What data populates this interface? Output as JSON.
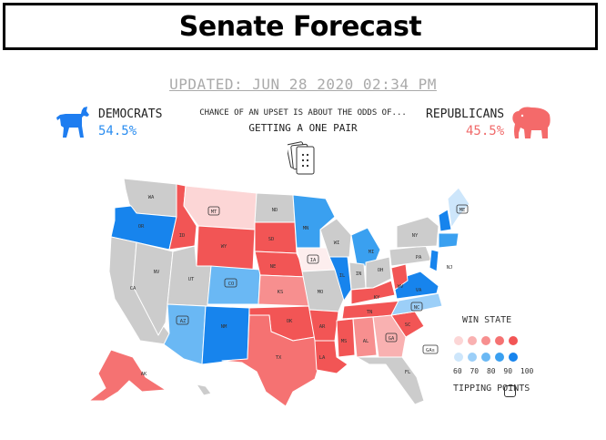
{
  "header": {
    "title": "Senate Forecast"
  },
  "updated": "UPDATED: JUN 28 2020 02:34 PM",
  "democrats": {
    "label": "DEMOCRATS",
    "pct": "54.5%",
    "color": "#1e7df0"
  },
  "republicans": {
    "label": "REPUBLICANS",
    "pct": "45.5%",
    "color": "#f46a6a"
  },
  "odds": {
    "line1": "CHANCE OF AN UPSET IS ABOUT THE ODDS OF...",
    "line2": "GETTING A ONE PAIR"
  },
  "map": {
    "states": [
      {
        "abbr": "WA",
        "boxed": false
      },
      {
        "abbr": "OR",
        "boxed": false
      },
      {
        "abbr": "CA",
        "boxed": false
      },
      {
        "abbr": "NV",
        "boxed": false
      },
      {
        "abbr": "ID",
        "boxed": false
      },
      {
        "abbr": "MT",
        "boxed": true
      },
      {
        "abbr": "WY",
        "boxed": false
      },
      {
        "abbr": "UT",
        "boxed": false
      },
      {
        "abbr": "CO",
        "boxed": true
      },
      {
        "abbr": "AZ",
        "boxed": true
      },
      {
        "abbr": "NM",
        "boxed": false
      },
      {
        "abbr": "ND",
        "boxed": false
      },
      {
        "abbr": "SD",
        "boxed": false
      },
      {
        "abbr": "NE",
        "boxed": false
      },
      {
        "abbr": "KS",
        "boxed": false
      },
      {
        "abbr": "OK",
        "boxed": false
      },
      {
        "abbr": "TX",
        "boxed": false
      },
      {
        "abbr": "MN",
        "boxed": false
      },
      {
        "abbr": "IA",
        "boxed": true
      },
      {
        "abbr": "MO",
        "boxed": false
      },
      {
        "abbr": "AR",
        "boxed": false
      },
      {
        "abbr": "LA",
        "boxed": false
      },
      {
        "abbr": "WI",
        "boxed": false
      },
      {
        "abbr": "IL",
        "boxed": false
      },
      {
        "abbr": "MI",
        "boxed": false
      },
      {
        "abbr": "IN",
        "boxed": false
      },
      {
        "abbr": "OH",
        "boxed": false
      },
      {
        "abbr": "KY",
        "boxed": false
      },
      {
        "abbr": "TN",
        "boxed": false
      },
      {
        "abbr": "MS",
        "boxed": false
      },
      {
        "abbr": "AL",
        "boxed": false
      },
      {
        "abbr": "GA",
        "boxed": true
      },
      {
        "abbr": "GAs",
        "boxed": true
      },
      {
        "abbr": "FL",
        "boxed": false
      },
      {
        "abbr": "SC",
        "boxed": false
      },
      {
        "abbr": "NC",
        "boxed": true
      },
      {
        "abbr": "VA",
        "boxed": false
      },
      {
        "abbr": "WV",
        "boxed": false
      },
      {
        "abbr": "PA",
        "boxed": false
      },
      {
        "abbr": "NY",
        "boxed": false
      },
      {
        "abbr": "NJ",
        "boxed": false
      },
      {
        "abbr": "ME",
        "boxed": true
      },
      {
        "abbr": "AK",
        "boxed": false
      }
    ]
  },
  "legend": {
    "title": "WIN STATE",
    "red_shades": [
      "#fcd6d6",
      "#f9b1b1",
      "#f78f8f",
      "#f57272",
      "#f25555"
    ],
    "blue_shades": [
      "#cde6fb",
      "#9ccff8",
      "#6ab8f4",
      "#3aa0f0",
      "#1784ed"
    ],
    "scale": [
      "60",
      "70",
      "80",
      "90",
      "100"
    ],
    "tipping_label": "TIPPING POINTS"
  }
}
